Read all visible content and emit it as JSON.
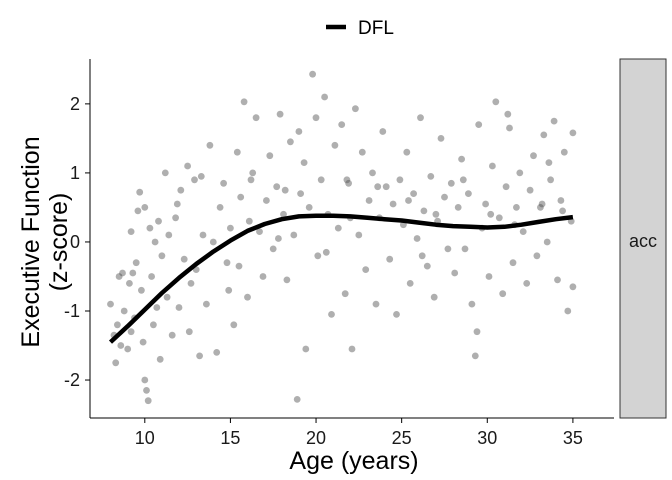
{
  "chart_data": {
    "type": "scatter",
    "xlabel": "Age (years)",
    "ylabel_lines": [
      "Executive Function",
      "(z-score)"
    ],
    "xlim": [
      6.8,
      37.4
    ],
    "ylim": [
      -2.55,
      2.65
    ],
    "xticks": [
      10,
      15,
      20,
      25,
      30,
      35
    ],
    "yticks": [
      -2,
      -1,
      0,
      1,
      2
    ],
    "grid": false,
    "legend_position": "top",
    "facet_label": "acc",
    "colors": {
      "points": "#4d4d4d",
      "line": "#000000",
      "strip": "#d3d3d3"
    },
    "series": [
      {
        "name": "DFL",
        "type": "line",
        "x": [
          8,
          9,
          10,
          11,
          12,
          13,
          14,
          15,
          16,
          17,
          18,
          19,
          20,
          21,
          22,
          23,
          24,
          25,
          26,
          27,
          28,
          29,
          30,
          31,
          32,
          33,
          34,
          35
        ],
        "y": [
          -1.45,
          -1.22,
          -0.98,
          -0.74,
          -0.52,
          -0.32,
          -0.14,
          0.02,
          0.16,
          0.26,
          0.33,
          0.37,
          0.38,
          0.38,
          0.37,
          0.35,
          0.33,
          0.31,
          0.28,
          0.25,
          0.23,
          0.22,
          0.21,
          0.22,
          0.25,
          0.29,
          0.33,
          0.36
        ]
      }
    ],
    "points": [
      [
        8.0,
        -0.9
      ],
      [
        8.2,
        -1.35
      ],
      [
        8.3,
        -1.75
      ],
      [
        8.4,
        -1.2
      ],
      [
        8.5,
        -0.5
      ],
      [
        8.6,
        -1.5
      ],
      [
        8.8,
        -1.0
      ],
      [
        9.0,
        -1.55
      ],
      [
        9.1,
        -0.6
      ],
      [
        9.2,
        -1.3
      ],
      [
        9.3,
        -0.45
      ],
      [
        9.4,
        -1.1
      ],
      [
        9.5,
        -0.3
      ],
      [
        9.6,
        0.45
      ],
      [
        9.7,
        0.72
      ],
      [
        9.8,
        -0.7
      ],
      [
        9.9,
        -1.45
      ],
      [
        10.0,
        -2.0
      ],
      [
        10.0,
        0.5
      ],
      [
        10.1,
        -2.15
      ],
      [
        10.2,
        -2.3
      ],
      [
        10.3,
        0.2
      ],
      [
        10.4,
        -0.5
      ],
      [
        10.5,
        -1.2
      ],
      [
        10.6,
        0.0
      ],
      [
        10.8,
        0.3
      ],
      [
        10.9,
        -1.7
      ],
      [
        11.0,
        -0.2
      ],
      [
        11.2,
        1.0
      ],
      [
        11.3,
        -0.8
      ],
      [
        11.4,
        0.1
      ],
      [
        11.6,
        -1.35
      ],
      [
        11.8,
        0.35
      ],
      [
        12.0,
        -0.95
      ],
      [
        12.1,
        0.75
      ],
      [
        12.3,
        -0.25
      ],
      [
        12.5,
        1.1
      ],
      [
        12.7,
        -0.6
      ],
      [
        12.9,
        0.9
      ],
      [
        13.0,
        -0.4
      ],
      [
        13.2,
        -1.65
      ],
      [
        13.4,
        0.1
      ],
      [
        13.6,
        -0.9
      ],
      [
        13.8,
        1.4
      ],
      [
        14.0,
        0.0
      ],
      [
        14.2,
        -1.6
      ],
      [
        14.4,
        0.5
      ],
      [
        14.6,
        0.85
      ],
      [
        14.8,
        -0.3
      ],
      [
        15.0,
        0.2
      ],
      [
        15.2,
        -1.2
      ],
      [
        15.4,
        1.3
      ],
      [
        15.6,
        0.65
      ],
      [
        15.8,
        2.03
      ],
      [
        16.0,
        -0.8
      ],
      [
        16.1,
        0.3
      ],
      [
        16.3,
        1.0
      ],
      [
        16.5,
        1.8
      ],
      [
        16.7,
        0.15
      ],
      [
        16.9,
        -0.5
      ],
      [
        17.1,
        0.6
      ],
      [
        17.3,
        1.25
      ],
      [
        17.5,
        -0.1
      ],
      [
        17.7,
        0.8
      ],
      [
        17.9,
        1.85
      ],
      [
        18.1,
        0.4
      ],
      [
        18.3,
        -0.55
      ],
      [
        18.5,
        1.45
      ],
      [
        18.7,
        0.1
      ],
      [
        18.9,
        -2.28
      ],
      [
        19.1,
        0.7
      ],
      [
        19.3,
        1.15
      ],
      [
        19.4,
        -1.55
      ],
      [
        19.6,
        0.5
      ],
      [
        19.8,
        2.43
      ],
      [
        20.0,
        1.8
      ],
      [
        20.1,
        -0.2
      ],
      [
        20.3,
        0.9
      ],
      [
        20.5,
        2.1
      ],
      [
        20.7,
        0.4
      ],
      [
        20.9,
        -1.05
      ],
      [
        21.1,
        1.4
      ],
      [
        21.3,
        0.2
      ],
      [
        21.5,
        1.7
      ],
      [
        21.7,
        -0.75
      ],
      [
        21.9,
        0.85
      ],
      [
        22.1,
        -1.55
      ],
      [
        22.3,
        1.93
      ],
      [
        22.5,
        0.1
      ],
      [
        22.7,
        1.3
      ],
      [
        22.9,
        -0.4
      ],
      [
        23.1,
        0.6
      ],
      [
        23.3,
        1.0
      ],
      [
        23.5,
        -0.9
      ],
      [
        23.7,
        0.35
      ],
      [
        23.9,
        1.6
      ],
      [
        24.1,
        0.8
      ],
      [
        24.3,
        -0.25
      ],
      [
        24.5,
        0.55
      ],
      [
        24.7,
        -1.05
      ],
      [
        24.9,
        0.9
      ],
      [
        25.1,
        0.25
      ],
      [
        25.3,
        1.3
      ],
      [
        25.5,
        -0.6
      ],
      [
        25.7,
        0.7
      ],
      [
        25.9,
        0.05
      ],
      [
        26.1,
        1.8
      ],
      [
        26.3,
        0.45
      ],
      [
        26.5,
        -0.35
      ],
      [
        26.7,
        0.95
      ],
      [
        26.9,
        -0.8
      ],
      [
        27.1,
        0.3
      ],
      [
        27.3,
        1.5
      ],
      [
        27.5,
        0.65
      ],
      [
        27.7,
        -0.1
      ],
      [
        27.9,
        0.85
      ],
      [
        28.1,
        -0.45
      ],
      [
        28.3,
        0.5
      ],
      [
        28.5,
        1.2
      ],
      [
        28.7,
        -0.1
      ],
      [
        28.9,
        0.7
      ],
      [
        29.1,
        -0.9
      ],
      [
        29.3,
        -1.65
      ],
      [
        29.4,
        -1.3
      ],
      [
        29.5,
        1.7
      ],
      [
        29.7,
        0.2
      ],
      [
        29.9,
        0.55
      ],
      [
        30.1,
        -0.5
      ],
      [
        30.3,
        1.1
      ],
      [
        30.5,
        2.03
      ],
      [
        30.7,
        0.35
      ],
      [
        30.9,
        -0.75
      ],
      [
        31.1,
        0.8
      ],
      [
        31.3,
        1.65
      ],
      [
        31.5,
        -0.3
      ],
      [
        31.7,
        0.5
      ],
      [
        31.9,
        1.0
      ],
      [
        32.1,
        0.15
      ],
      [
        32.3,
        -0.6
      ],
      [
        32.5,
        0.75
      ],
      [
        32.7,
        1.25
      ],
      [
        32.9,
        -0.2
      ],
      [
        33.1,
        0.5
      ],
      [
        33.3,
        1.55
      ],
      [
        33.5,
        0.0
      ],
      [
        33.7,
        0.9
      ],
      [
        33.9,
        1.75
      ],
      [
        34.1,
        -0.55
      ],
      [
        34.3,
        0.6
      ],
      [
        34.5,
        1.3
      ],
      [
        34.7,
        -1.0
      ],
      [
        34.9,
        0.3
      ],
      [
        35.0,
        1.58
      ],
      [
        35.0,
        -0.65
      ],
      [
        8.7,
        -0.45
      ],
      [
        9.2,
        0.15
      ],
      [
        10.7,
        -0.95
      ],
      [
        11.9,
        0.55
      ],
      [
        13.3,
        0.95
      ],
      [
        14.9,
        -0.7
      ],
      [
        16.2,
        0.9
      ],
      [
        17.8,
        0.05
      ],
      [
        19.0,
        1.6
      ],
      [
        20.6,
        -0.15
      ],
      [
        22.0,
        0.35
      ],
      [
        23.6,
        0.8
      ],
      [
        25.4,
        0.6
      ],
      [
        27.0,
        0.4
      ],
      [
        28.6,
        0.9
      ],
      [
        30.2,
        0.4
      ],
      [
        31.6,
        0.25
      ],
      [
        33.2,
        0.55
      ],
      [
        34.4,
        0.45
      ],
      [
        12.6,
        -1.3
      ],
      [
        18.2,
        0.75
      ],
      [
        21.8,
        0.9
      ],
      [
        26.2,
        -0.2
      ],
      [
        31.2,
        1.85
      ],
      [
        33.6,
        1.15
      ],
      [
        15.5,
        -0.35
      ]
    ]
  }
}
